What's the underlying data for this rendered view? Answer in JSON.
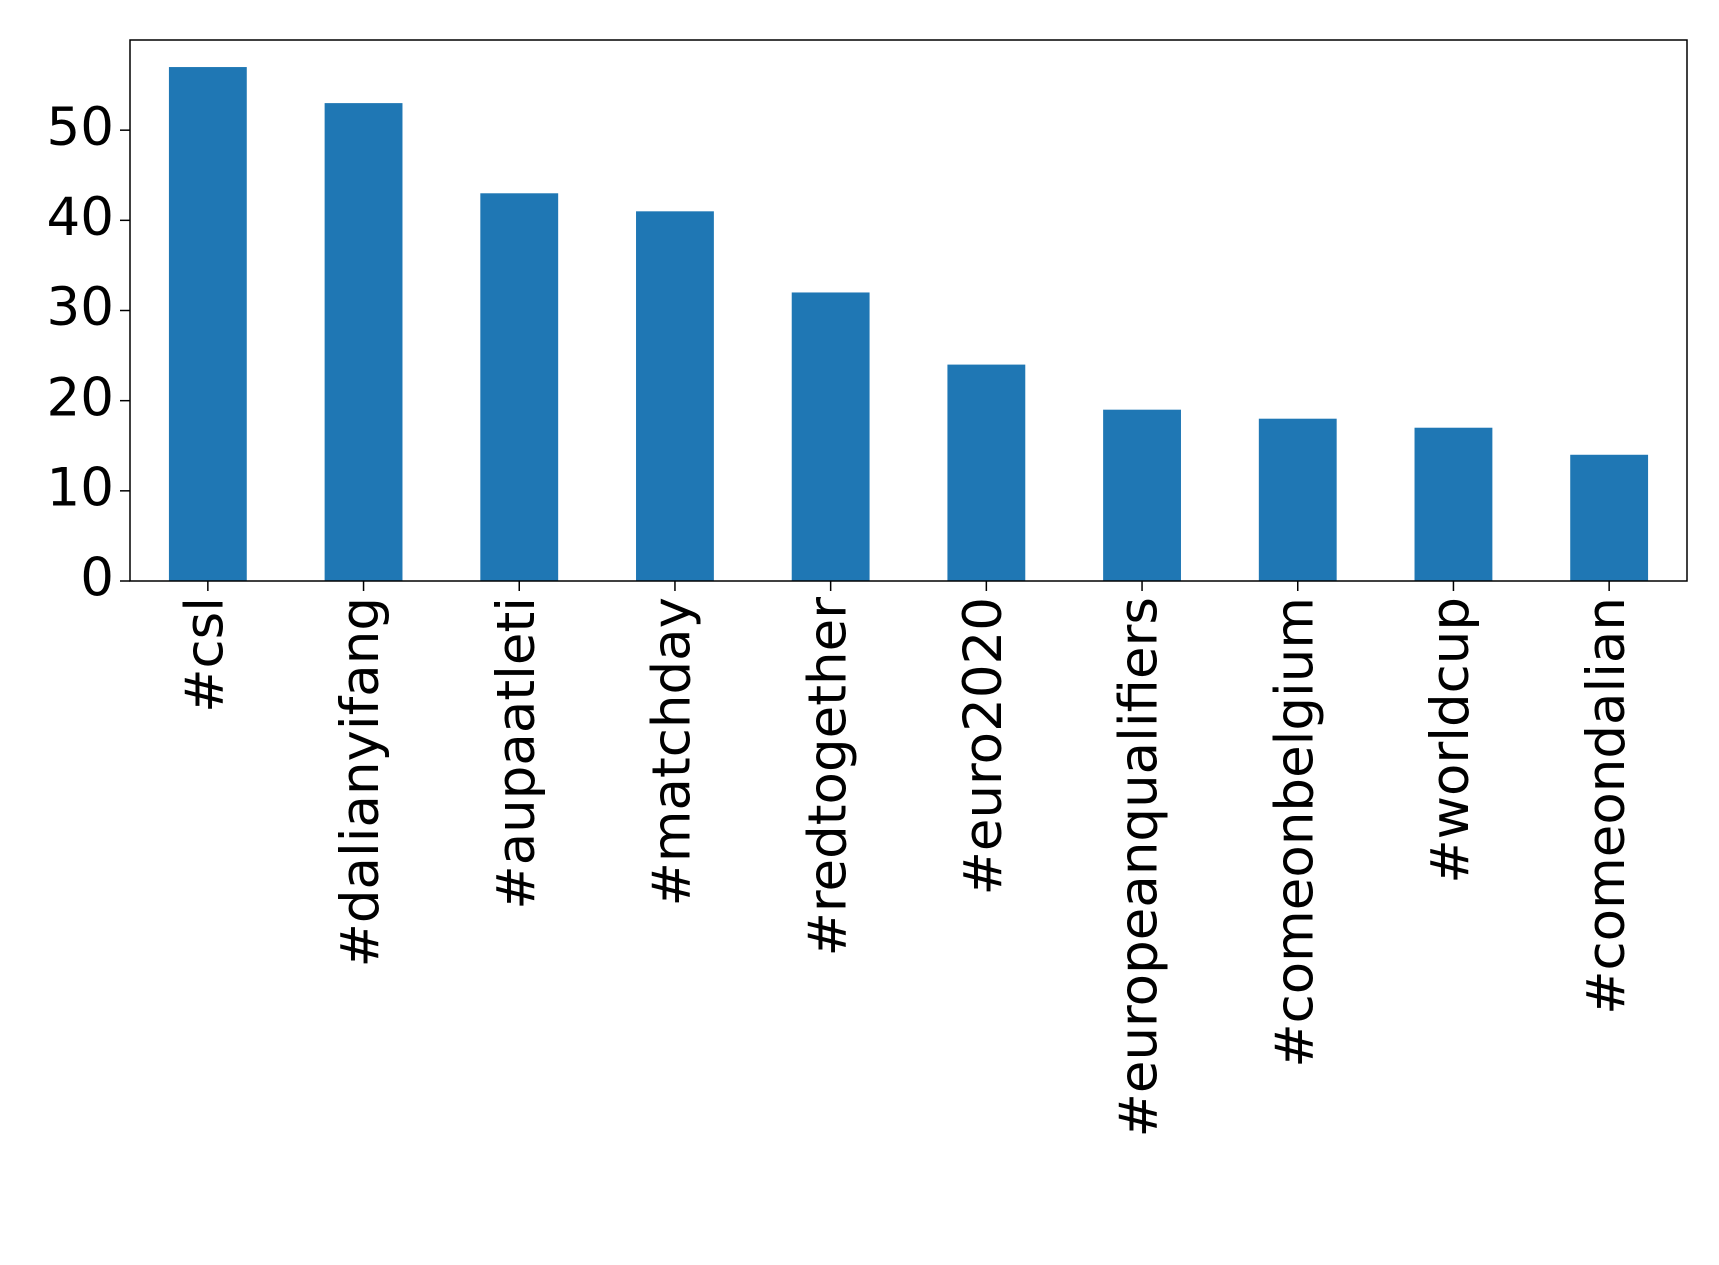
{
  "chart_data": {
    "type": "bar",
    "categories": [
      "#csl",
      "#dalianyifang",
      "#aupaatleti",
      "#matchday",
      "#redtogether",
      "#euro2020",
      "#europeanqualifiers",
      "#comeonbelgium",
      "#worldcup",
      "#comeondalian"
    ],
    "values": [
      57,
      53,
      43,
      41,
      32,
      24,
      19,
      18,
      17,
      14
    ],
    "color": "#1f77b4",
    "ylim": [
      0,
      60
    ],
    "yticks": [
      0,
      10,
      20,
      30,
      40,
      50
    ],
    "grid": false
  }
}
